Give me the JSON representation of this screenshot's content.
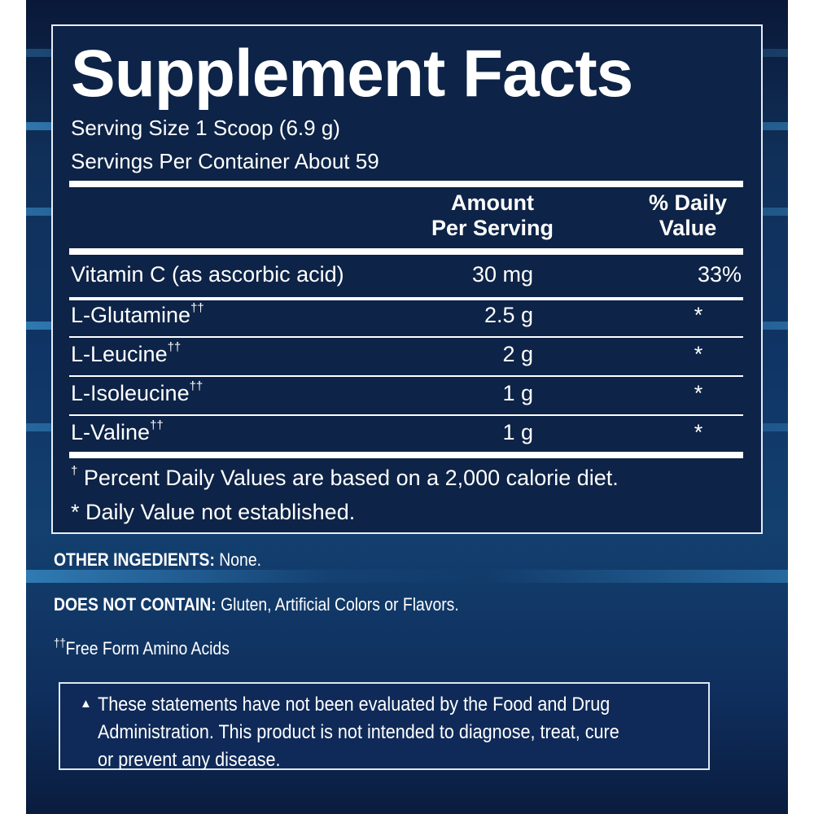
{
  "title": "Supplement Facts",
  "serving_size": "Serving Size 1 Scoop (6.9 g)",
  "servings_per_container": "Servings Per Container About 59",
  "headers": {
    "amount_line1": "Amount",
    "amount_line2": "Per Serving",
    "dv_line1": "% Daily",
    "dv_line2": "Value"
  },
  "rows": [
    {
      "name": "Vitamin C (as ascorbic acid)",
      "mark": "",
      "amount": "30 mg",
      "dv": "33%"
    },
    {
      "name": "L-Glutamine",
      "mark": "††",
      "amount": "2.5 g",
      "dv": "*"
    },
    {
      "name": "L-Leucine",
      "mark": "††",
      "amount": "2 g",
      "dv": "*"
    },
    {
      "name": "L-Isoleucine",
      "mark": "††",
      "amount": "1 g",
      "dv": "*"
    },
    {
      "name": "L-Valine",
      "mark": "††",
      "amount": "1 g",
      "dv": "*"
    }
  ],
  "footnotes": {
    "dagger_mark": "†",
    "dagger_text": "Percent Daily Values are based on a 2,000 calorie diet.",
    "star_text": "* Daily Value not established."
  },
  "other_ingredients": {
    "label": "OTHER INGEDIENTS:",
    "value": "None."
  },
  "does_not_contain": {
    "label": "DOES NOT CONTAIN:",
    "value": "Gluten, Artificial Colors or Flavors."
  },
  "free_form": {
    "mark": "††",
    "text": "Free Form Amino Acids"
  },
  "disclaimer": {
    "icon": "triangle-icon",
    "symbol": "▲",
    "lines": [
      "These statements have not been evaluated by the Food and Drug",
      "Administration. This product is not intended to diagnose, treat, cure",
      "or prevent any disease."
    ]
  },
  "colors": {
    "panel": "#0d2347",
    "text": "#ffffff"
  }
}
